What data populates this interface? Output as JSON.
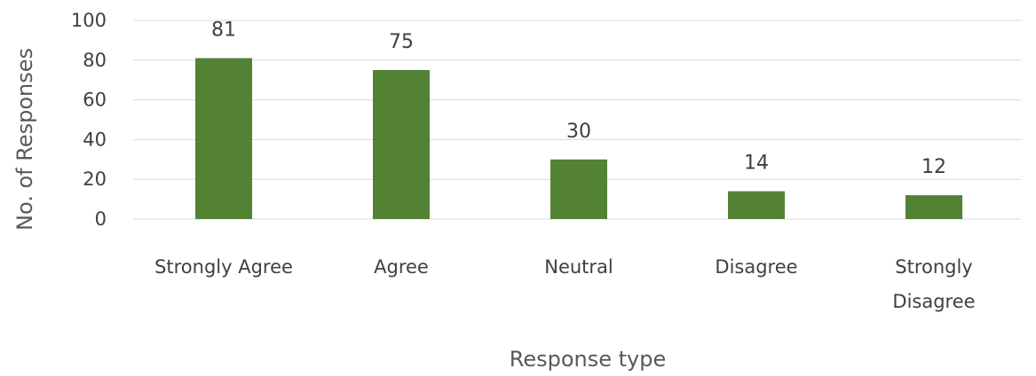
{
  "chart_data": {
    "type": "bar",
    "title": "",
    "xlabel": "Response type",
    "ylabel": "No. of Responses",
    "categories": [
      [
        "Strongly Agree"
      ],
      [
        "Agree"
      ],
      [
        "Neutral"
      ],
      [
        "Disagree"
      ],
      [
        "Strongly",
        "Disagree"
      ]
    ],
    "values": [
      81,
      75,
      30,
      14,
      12
    ],
    "data_labels": [
      "81",
      "75",
      "30",
      "14",
      "12"
    ],
    "ylim": [
      0,
      100
    ],
    "yticks": [
      0,
      20,
      40,
      60,
      80,
      100
    ],
    "grid": true,
    "legend": "none",
    "bar_color": "#548235",
    "grid_color": "#d9d9d9"
  }
}
